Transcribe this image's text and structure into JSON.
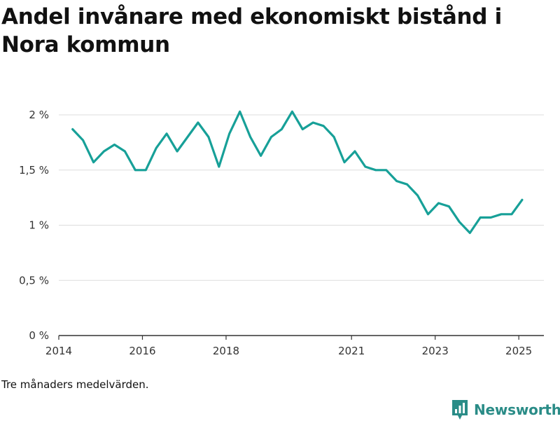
{
  "title": "Andel invånare med ekonomiskt bistånd i Nora kommun",
  "note": "Tre månaders medelvärden.",
  "brand": {
    "name": "Newsworthy",
    "icon": "bar-chart-pin-icon",
    "color": "#2a8c87"
  },
  "colors": {
    "line": "#17a098",
    "grid": "#dddddd",
    "axis": "#333333"
  },
  "chart_data": {
    "type": "line",
    "title": "Andel invånare med ekonomiskt bistånd i Nora kommun",
    "xlabel": "",
    "ylabel": "",
    "ylim": [
      0,
      2
    ],
    "xlim": [
      2014.0,
      2025.6
    ],
    "y_ticks": [
      {
        "value": 0,
        "label": "0 %"
      },
      {
        "value": 0.5,
        "label": "0,5 %"
      },
      {
        "value": 1,
        "label": "1 %"
      },
      {
        "value": 1.5,
        "label": "1,5 %"
      },
      {
        "value": 2,
        "label": "2 %"
      }
    ],
    "x_ticks": [
      {
        "value": 2014,
        "label": "2014"
      },
      {
        "value": 2016,
        "label": "2016"
      },
      {
        "value": 2018,
        "label": "2018"
      },
      {
        "value": 2021,
        "label": "2021"
      },
      {
        "value": 2023,
        "label": "2023"
      },
      {
        "value": 2025,
        "label": "2025"
      }
    ],
    "grid": true,
    "legend": "none",
    "series": [
      {
        "x": [
          2014.33,
          2014.58,
          2014.83,
          2015.08,
          2015.33,
          2015.58,
          2015.83,
          2016.08,
          2016.33,
          2016.58,
          2016.83,
          2017.08,
          2017.33,
          2017.58,
          2017.83,
          2018.08,
          2018.33,
          2018.58,
          2018.83,
          2019.08,
          2019.33,
          2019.58,
          2019.83,
          2020.08,
          2020.33,
          2020.58,
          2020.83,
          2021.08,
          2021.33,
          2021.58,
          2021.83,
          2022.08,
          2022.33,
          2022.58,
          2022.83,
          2023.08,
          2023.33,
          2023.58,
          2023.83,
          2024.08,
          2024.33,
          2024.58,
          2024.83,
          2025.08
        ],
        "values": [
          1.87,
          1.77,
          1.57,
          1.67,
          1.73,
          1.67,
          1.5,
          1.5,
          1.7,
          1.83,
          1.67,
          1.8,
          1.93,
          1.8,
          1.53,
          1.83,
          2.03,
          1.8,
          1.63,
          1.8,
          1.87,
          2.03,
          1.87,
          1.93,
          1.9,
          1.8,
          1.57,
          1.67,
          1.53,
          1.5,
          1.5,
          1.4,
          1.37,
          1.27,
          1.1,
          1.2,
          1.17,
          1.03,
          0.93,
          1.07,
          1.07,
          1.1,
          1.1,
          1.23
        ]
      }
    ]
  }
}
